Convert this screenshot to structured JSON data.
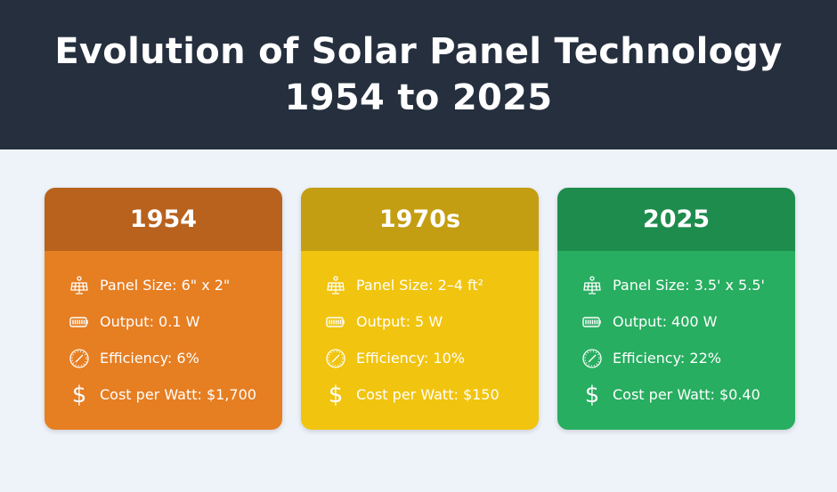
{
  "header": {
    "title_line1": "Evolution of Solar Panel Technology",
    "title_line2": "1954 to 2025"
  },
  "cards": [
    {
      "year": "1954",
      "header_color": "#b8621e",
      "body_color": "#e67e22",
      "panel_size": "Panel Size: 6\" x 2\"",
      "output": "Output: 0.1 W",
      "efficiency": "Efficiency: 6%",
      "cost": "Cost per Watt: $1,700"
    },
    {
      "year": "1970s",
      "header_color": "#c49e12",
      "body_color": "#f1c40f",
      "panel_size": "Panel Size: 2–4 ft²",
      "output": "Output: 5 W",
      "efficiency": "Efficiency: 10%",
      "cost": "Cost per Watt: $150"
    },
    {
      "year": "2025",
      "header_color": "#1e8c4c",
      "body_color": "#27ae60",
      "panel_size": "Panel Size: 3.5' x 5.5'",
      "output": "Output: 400 W",
      "efficiency": "Efficiency: 22%",
      "cost": "Cost per Watt: $0.40"
    }
  ],
  "icons": {
    "panel": "solar-panel-icon",
    "output": "battery-icon",
    "efficiency": "gauge-icon",
    "cost": "dollar-icon",
    "dollar_glyph": "$"
  }
}
